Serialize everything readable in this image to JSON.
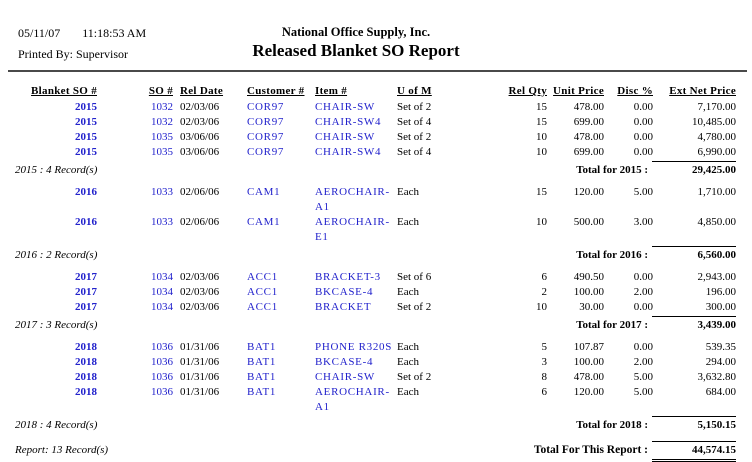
{
  "header": {
    "date": "05/11/07",
    "time": "11:18:53 AM",
    "printed_by": "Printed By: Supervisor",
    "company": "National Office Supply, Inc.",
    "title": "Released Blanket SO Report"
  },
  "columns": [
    "Blanket SO #",
    "SO #",
    "Rel Date",
    "Customer #",
    "Item #",
    "U of M",
    "Rel Qty",
    "Unit Price",
    "Disc %",
    "Ext Net Price"
  ],
  "link_color": "#2222CC",
  "groups": [
    {
      "rows": [
        {
          "blanket": "2015",
          "so": "1032",
          "date": "02/03/06",
          "customer": "COR97",
          "item": "CHAIR-SW",
          "uom": "Set of 2",
          "qty": "15",
          "unit": "478.00",
          "disc": "0.00",
          "ext": "7,170.00"
        },
        {
          "blanket": "2015",
          "so": "1032",
          "date": "02/03/06",
          "customer": "COR97",
          "item": "CHAIR-SW4",
          "uom": "Set of 4",
          "qty": "15",
          "unit": "699.00",
          "disc": "0.00",
          "ext": "10,485.00"
        },
        {
          "blanket": "2015",
          "so": "1035",
          "date": "03/06/06",
          "customer": "COR97",
          "item": "CHAIR-SW",
          "uom": "Set of 2",
          "qty": "10",
          "unit": "478.00",
          "disc": "0.00",
          "ext": "4,780.00"
        },
        {
          "blanket": "2015",
          "so": "1035",
          "date": "03/06/06",
          "customer": "COR97",
          "item": "CHAIR-SW4",
          "uom": "Set of 4",
          "qty": "10",
          "unit": "699.00",
          "disc": "0.00",
          "ext": "6,990.00"
        }
      ],
      "footer_left": "2015 : 4 Record(s)",
      "total_label": "Total for 2015 :",
      "total_value": "29,425.00"
    },
    {
      "rows": [
        {
          "blanket": "2016",
          "so": "1033",
          "date": "02/06/06",
          "customer": "CAM1",
          "item": "AEROCHAIR-A1",
          "uom": "Each",
          "qty": "15",
          "unit": "120.00",
          "disc": "5.00",
          "ext": "1,710.00"
        },
        {
          "blanket": "2016",
          "so": "1033",
          "date": "02/06/06",
          "customer": "CAM1",
          "item": "AEROCHAIR-E1",
          "uom": "Each",
          "qty": "10",
          "unit": "500.00",
          "disc": "3.00",
          "ext": "4,850.00"
        }
      ],
      "footer_left": "2016 : 2 Record(s)",
      "total_label": "Total for 2016 :",
      "total_value": "6,560.00"
    },
    {
      "rows": [
        {
          "blanket": "2017",
          "so": "1034",
          "date": "02/03/06",
          "customer": "ACC1",
          "item": "BRACKET-3",
          "uom": "Set of 6",
          "qty": "6",
          "unit": "490.50",
          "disc": "0.00",
          "ext": "2,943.00"
        },
        {
          "blanket": "2017",
          "so": "1034",
          "date": "02/03/06",
          "customer": "ACC1",
          "item": "BKCASE-4",
          "uom": "Each",
          "qty": "2",
          "unit": "100.00",
          "disc": "2.00",
          "ext": "196.00"
        },
        {
          "blanket": "2017",
          "so": "1034",
          "date": "02/03/06",
          "customer": "ACC1",
          "item": "BRACKET",
          "uom": "Set of 2",
          "qty": "10",
          "unit": "30.00",
          "disc": "0.00",
          "ext": "300.00"
        }
      ],
      "footer_left": "2017 : 3 Record(s)",
      "total_label": "Total for 2017 :",
      "total_value": "3,439.00"
    },
    {
      "rows": [
        {
          "blanket": "2018",
          "so": "1036",
          "date": "01/31/06",
          "customer": "BAT1",
          "item": "PHONE R320S",
          "uom": "Each",
          "qty": "5",
          "unit": "107.87",
          "disc": "0.00",
          "ext": "539.35"
        },
        {
          "blanket": "2018",
          "so": "1036",
          "date": "01/31/06",
          "customer": "BAT1",
          "item": "BKCASE-4",
          "uom": "Each",
          "qty": "3",
          "unit": "100.00",
          "disc": "2.00",
          "ext": "294.00"
        },
        {
          "blanket": "2018",
          "so": "1036",
          "date": "01/31/06",
          "customer": "BAT1",
          "item": "CHAIR-SW",
          "uom": "Set of 2",
          "qty": "8",
          "unit": "478.00",
          "disc": "5.00",
          "ext": "3,632.80"
        },
        {
          "blanket": "2018",
          "so": "1036",
          "date": "01/31/06",
          "customer": "BAT1",
          "item": "AEROCHAIR-A1",
          "uom": "Each",
          "qty": "6",
          "unit": "120.00",
          "disc": "5.00",
          "ext": "684.00"
        }
      ],
      "footer_left": "2018 : 4 Record(s)",
      "total_label": "Total for 2018 :",
      "total_value": "5,150.15"
    }
  ],
  "report_footer": {
    "left": "Report: 13 Record(s)",
    "total_label": "Total For This Report :",
    "total_value": "44,574.15"
  }
}
